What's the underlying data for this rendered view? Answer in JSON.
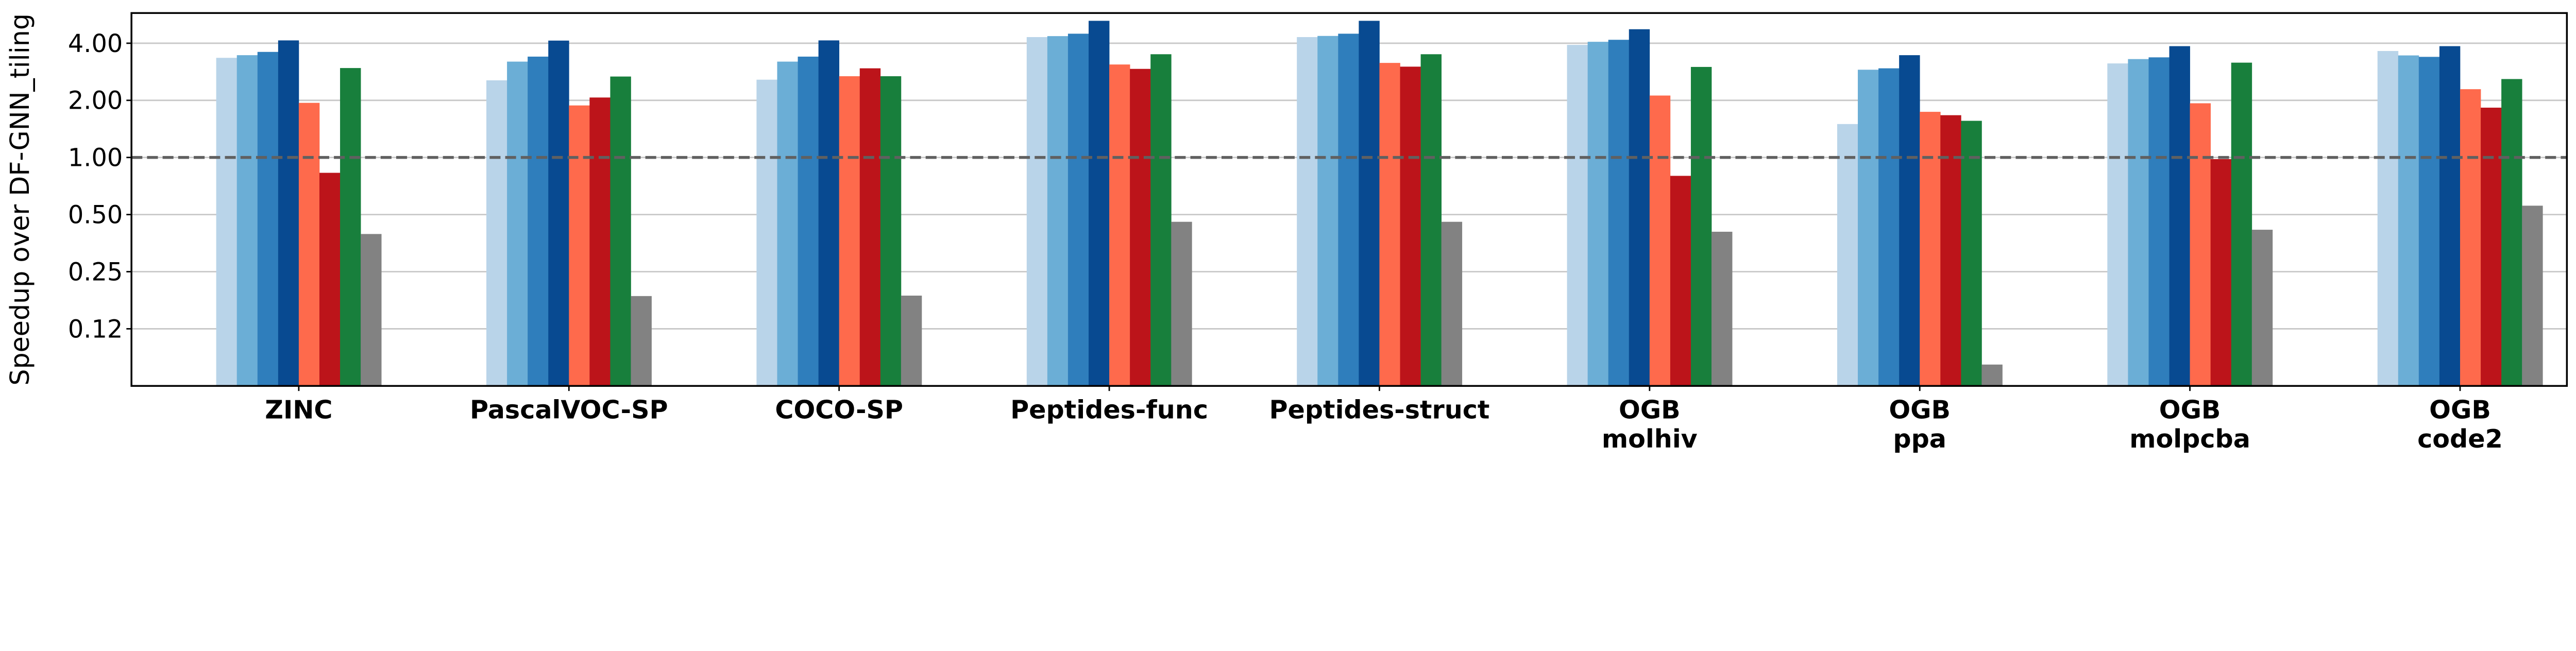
{
  "chart_data": {
    "type": "bar",
    "title": "",
    "xlabel": "",
    "ylabel": "Speedup over DF-GNN_tiling",
    "yscale": "log2",
    "ylim": [
      0.0625,
      5.77
    ],
    "yticks": [
      0.125,
      0.25,
      0.5,
      1,
      2,
      4
    ],
    "ytick_labels": [
      "0.12",
      "0.25",
      "0.50",
      "1.00",
      "2.00",
      "4.00"
    ],
    "grid": "horizontal",
    "reference_line": {
      "y": 1.0,
      "style": "dashed",
      "color": "#606060"
    },
    "categories": [
      [
        "ZINC"
      ],
      [
        "PascalVOC-SP"
      ],
      [
        "COCO-SP"
      ],
      [
        "Peptides-func"
      ],
      [
        "Peptides-struct"
      ],
      [
        "OGB",
        "molhiv"
      ],
      [
        "OGB",
        "ppa"
      ],
      [
        "OGB",
        "molpcba"
      ],
      [
        "OGB",
        "code2"
      ]
    ],
    "series": [
      {
        "color": "#b9d4e9",
        "values": [
          3.35,
          2.55,
          2.57,
          4.31,
          4.31,
          3.92,
          1.5,
          3.13,
          3.64
        ]
      },
      {
        "color": "#6baed6",
        "values": [
          3.46,
          3.2,
          3.2,
          4.36,
          4.37,
          4.07,
          2.9,
          3.3,
          3.45
        ]
      },
      {
        "color": "#2f7ebc",
        "values": [
          3.6,
          3.4,
          3.4,
          4.49,
          4.49,
          4.17,
          2.95,
          3.37,
          3.39
        ]
      },
      {
        "color": "#084a91",
        "values": [
          4.14,
          4.13,
          4.14,
          5.25,
          5.25,
          4.74,
          3.46,
          3.86,
          3.86
        ]
      },
      {
        "color": "#fe6a4c",
        "values": [
          1.94,
          1.88,
          2.68,
          3.09,
          3.15,
          2.12,
          1.74,
          1.93,
          2.29
        ]
      },
      {
        "color": "#bc141a",
        "values": [
          0.83,
          2.07,
          2.95,
          2.93,
          3.01,
          0.8,
          1.67,
          0.98,
          1.83
        ]
      },
      {
        "color": "#187f3c",
        "values": [
          2.96,
          2.67,
          2.68,
          3.5,
          3.5,
          3.0,
          1.56,
          3.16,
          2.59
        ]
      },
      {
        "color": "#828282",
        "values": [
          0.395,
          0.186,
          0.187,
          0.458,
          0.458,
          0.406,
          0.081,
          0.416,
          0.557
        ]
      }
    ],
    "legend": "none"
  }
}
